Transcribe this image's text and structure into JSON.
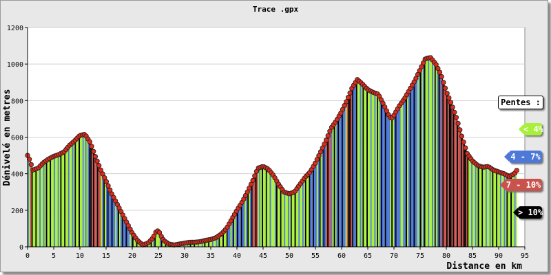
{
  "chart_data": {
    "type": "area",
    "title": "Trace .gpx",
    "xlabel": "Distance en km",
    "ylabel": "Dénivelé en metres",
    "xlim": [
      0,
      95
    ],
    "ylim": [
      0,
      1200
    ],
    "xticks": [
      "0",
      "5",
      "10",
      "15",
      "20",
      "25",
      "30",
      "35",
      "40",
      "45",
      "50",
      "55",
      "60",
      "65",
      "70",
      "75",
      "80",
      "85",
      "90",
      "95"
    ],
    "yticks": [
      "0",
      "200",
      "400",
      "600",
      "800",
      "1000",
      "1200"
    ],
    "grid": true,
    "series": [
      {
        "values": [
          [
            0,
            500
          ],
          [
            0.5,
            470
          ],
          [
            1,
            420
          ],
          [
            2,
            430
          ],
          [
            3,
            460
          ],
          [
            4,
            480
          ],
          [
            5,
            495
          ],
          [
            6,
            505
          ],
          [
            7,
            520
          ],
          [
            8,
            555
          ],
          [
            9,
            580
          ],
          [
            10,
            610
          ],
          [
            11,
            615
          ],
          [
            12,
            570
          ],
          [
            13,
            490
          ],
          [
            14,
            420
          ],
          [
            15,
            360
          ],
          [
            16,
            295
          ],
          [
            17,
            240
          ],
          [
            18,
            185
          ],
          [
            19,
            130
          ],
          [
            20,
            75
          ],
          [
            21,
            35
          ],
          [
            22,
            10
          ],
          [
            23,
            20
          ],
          [
            24,
            50
          ],
          [
            24.5,
            80
          ],
          [
            25,
            90
          ],
          [
            25.5,
            60
          ],
          [
            26,
            35
          ],
          [
            27,
            15
          ],
          [
            28,
            10
          ],
          [
            29,
            15
          ],
          [
            30,
            20
          ],
          [
            31,
            25
          ],
          [
            32,
            25
          ],
          [
            33,
            28
          ],
          [
            34,
            35
          ],
          [
            35,
            40
          ],
          [
            36,
            50
          ],
          [
            37,
            70
          ],
          [
            38,
            100
          ],
          [
            39,
            150
          ],
          [
            40,
            200
          ],
          [
            41,
            245
          ],
          [
            42,
            300
          ],
          [
            43,
            360
          ],
          [
            44,
            430
          ],
          [
            45,
            440
          ],
          [
            46,
            425
          ],
          [
            47,
            390
          ],
          [
            48,
            340
          ],
          [
            49,
            300
          ],
          [
            50,
            290
          ],
          [
            51,
            300
          ],
          [
            52,
            340
          ],
          [
            53,
            380
          ],
          [
            54,
            410
          ],
          [
            55,
            460
          ],
          [
            56,
            520
          ],
          [
            57,
            580
          ],
          [
            58,
            650
          ],
          [
            59,
            690
          ],
          [
            60,
            740
          ],
          [
            61,
            800
          ],
          [
            62,
            870
          ],
          [
            63,
            915
          ],
          [
            64,
            890
          ],
          [
            65,
            860
          ],
          [
            66,
            845
          ],
          [
            67,
            835
          ],
          [
            68,
            780
          ],
          [
            69,
            720
          ],
          [
            69.5,
            700
          ],
          [
            70,
            720
          ],
          [
            71,
            770
          ],
          [
            72,
            810
          ],
          [
            73,
            860
          ],
          [
            74,
            910
          ],
          [
            75,
            970
          ],
          [
            76,
            1030
          ],
          [
            77,
            1035
          ],
          [
            78,
            1000
          ],
          [
            79,
            940
          ],
          [
            80,
            850
          ],
          [
            81,
            780
          ],
          [
            82,
            700
          ],
          [
            83,
            600
          ],
          [
            84,
            510
          ],
          [
            85,
            470
          ],
          [
            86,
            445
          ],
          [
            87,
            435
          ],
          [
            88,
            440
          ],
          [
            89,
            420
          ],
          [
            90,
            410
          ],
          [
            91,
            400
          ],
          [
            92,
            385
          ],
          [
            93,
            400
          ],
          [
            93.5,
            420
          ]
        ]
      }
    ],
    "legend": {
      "title": "Pentes :",
      "position": "right",
      "items": [
        {
          "label": "< 4%",
          "color": "#a8f03a"
        },
        {
          "label": "4 - 7%",
          "color": "#4e78d8"
        },
        {
          "label": "7 - 10%",
          "color": "#c9524d"
        },
        {
          "label": "> 10%",
          "color": "#000000"
        }
      ]
    },
    "colors": {
      "plot_bg": "#ffffff",
      "frame_bg": "#e8e8e8",
      "grid": "#d0d0d0",
      "marker_fill": "#e02a1a",
      "marker_stroke": "#222222"
    }
  }
}
